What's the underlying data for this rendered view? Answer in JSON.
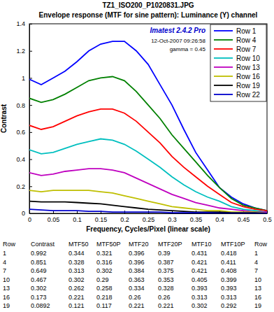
{
  "chart_data": {
    "type": "line",
    "title": "TZ1_ISO200_P1020831.JPG",
    "subtitle": "Envelope response (MTF for sine pattern): Luminance (Y) channel",
    "x_label": "Frequency, Cycles/Pixel (linear scale)",
    "y_label": "Contrast",
    "annotations": [
      "Imatest 2.4.2 Pro",
      "12-Oct-2007 09:26:58",
      "gamma = 0.45"
    ],
    "x": [
      0,
      0.025,
      0.05,
      0.075,
      0.1,
      0.125,
      0.15,
      0.175,
      0.2,
      0.225,
      0.25,
      0.275,
      0.3,
      0.325,
      0.35,
      0.375,
      0.4,
      0.425,
      0.45,
      0.475,
      0.5
    ],
    "series": [
      {
        "name": "Row 1",
        "color": "#0000ff",
        "values": [
          0.99,
          0.95,
          1.0,
          1.05,
          1.12,
          1.2,
          1.25,
          1.27,
          1.27,
          1.2,
          1.1,
          0.95,
          0.8,
          0.62,
          0.45,
          0.32,
          0.19,
          0.12,
          0.07,
          0.04,
          0.02
        ]
      },
      {
        "name": "Row 4",
        "color": "#008000",
        "values": [
          0.85,
          0.82,
          0.84,
          0.88,
          0.93,
          0.98,
          1.0,
          1.01,
          0.98,
          0.9,
          0.8,
          0.7,
          0.58,
          0.48,
          0.38,
          0.28,
          0.19,
          0.11,
          0.06,
          0.04,
          0.02
        ]
      },
      {
        "name": "Row 7",
        "color": "#ff0000",
        "values": [
          0.65,
          0.62,
          0.64,
          0.68,
          0.72,
          0.75,
          0.77,
          0.77,
          0.74,
          0.68,
          0.6,
          0.52,
          0.42,
          0.34,
          0.27,
          0.2,
          0.14,
          0.08,
          0.05,
          0.03,
          0.02
        ]
      },
      {
        "name": "Row 10",
        "color": "#00bfbf",
        "values": [
          0.47,
          0.44,
          0.45,
          0.48,
          0.51,
          0.53,
          0.55,
          0.54,
          0.51,
          0.46,
          0.4,
          0.34,
          0.27,
          0.21,
          0.16,
          0.12,
          0.09,
          0.05,
          0.03,
          0.02,
          0.01
        ]
      },
      {
        "name": "Row 13",
        "color": "#bf00bf",
        "values": [
          0.3,
          0.28,
          0.29,
          0.31,
          0.32,
          0.33,
          0.33,
          0.32,
          0.3,
          0.26,
          0.22,
          0.18,
          0.14,
          0.11,
          0.08,
          0.06,
          0.04,
          0.03,
          0.02,
          0.01,
          0.01
        ]
      },
      {
        "name": "Row 16",
        "color": "#bfbf00",
        "values": [
          0.17,
          0.16,
          0.17,
          0.17,
          0.17,
          0.17,
          0.16,
          0.15,
          0.13,
          0.11,
          0.09,
          0.07,
          0.05,
          0.04,
          0.03,
          0.02,
          0.02,
          0.01,
          0.01,
          0.01,
          0.0
        ]
      },
      {
        "name": "Row 19",
        "color": "#000000",
        "values": [
          0.09,
          0.085,
          0.085,
          0.085,
          0.08,
          0.075,
          0.07,
          0.06,
          0.05,
          0.04,
          0.03,
          0.025,
          0.02,
          0.015,
          0.01,
          0.01,
          0.01,
          0.005,
          0.005,
          0.005,
          0.0
        ]
      },
      {
        "name": "Row 22",
        "color": "#0000cc",
        "values": [
          0.03,
          0.025,
          0.02,
          0.02,
          0.02,
          0.015,
          0.015,
          0.01,
          0.01,
          0.01,
          0.01,
          0.01,
          0.005,
          0.005,
          0.005,
          0.005,
          0.0,
          0.0,
          0.0,
          0.0,
          0.0
        ]
      }
    ],
    "xlim": [
      0,
      0.5
    ],
    "xticks": [
      0,
      0.05,
      0.1,
      0.15,
      0.2,
      0.25,
      0.3,
      0.35,
      0.4,
      0.45,
      0.5
    ],
    "ylim": [
      0,
      1.4
    ],
    "yticks": [
      0,
      0.2,
      0.4,
      0.6,
      0.8,
      1,
      1.2,
      1.4
    ],
    "grid": false,
    "legend": "upper right"
  },
  "table": {
    "columns": [
      "Row",
      "Contrast",
      "MTF50",
      "MTF50P",
      "MTF20",
      "MTF20P",
      "MTF10",
      "MTF10P",
      "Row"
    ],
    "rows": [
      [
        1,
        0.992,
        0.344,
        0.321,
        0.396,
        0.39,
        0.431,
        0.418,
        1
      ],
      [
        4,
        0.851,
        0.328,
        0.316,
        0.396,
        0.387,
        0.421,
        0.411,
        4
      ],
      [
        7,
        0.649,
        0.313,
        0.302,
        0.384,
        0.375,
        0.421,
        0.408,
        7
      ],
      [
        10,
        0.467,
        0.302,
        0.29,
        0.363,
        0.353,
        0.405,
        0.399,
        10
      ],
      [
        13,
        0.302,
        0.262,
        0.258,
        0.334,
        0.328,
        0.393,
        0.393,
        13
      ],
      [
        16,
        0.173,
        0.221,
        0.218,
        0.26,
        0.26,
        0.313,
        0.313,
        16
      ],
      [
        19,
        0.0892,
        0.121,
        0.117,
        0.221,
        0.221,
        0.302,
        0.292,
        19
      ]
    ]
  }
}
